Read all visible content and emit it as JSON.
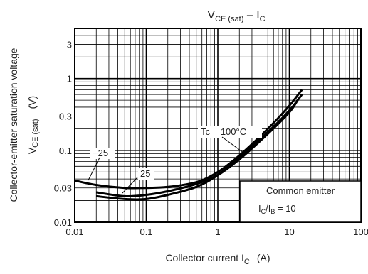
{
  "chart_data": {
    "type": "line",
    "title": "V",
    "title_sub": "CE (sat)",
    "title_suffix": " – I",
    "title_sub2": "C",
    "xlabel": "Collector current   I",
    "xlabel_sub": "C",
    "xlabel_unit": "(A)",
    "ylabel_line1": "Collector-emitter saturation voltage",
    "ylabel_main": "V",
    "ylabel_sub": "CE (sat)",
    "ylabel_unit": "(V)",
    "x_scale": "log",
    "y_scale": "log",
    "xlim": [
      0.01,
      100
    ],
    "ylim": [
      0.01,
      5
    ],
    "x_ticks": [
      {
        "v": 0.01,
        "label": "0.01"
      },
      {
        "v": 0.1,
        "label": "0.1"
      },
      {
        "v": 1,
        "label": "1"
      },
      {
        "v": 10,
        "label": "10"
      },
      {
        "v": 100,
        "label": "100"
      }
    ],
    "y_ticks": [
      {
        "v": 0.01,
        "label": "0.01"
      },
      {
        "v": 0.03,
        "label": "0.03"
      },
      {
        "v": 0.1,
        "label": "0.1"
      },
      {
        "v": 0.3,
        "label": "0.3"
      },
      {
        "v": 1,
        "label": "1"
      },
      {
        "v": 3,
        "label": "3"
      }
    ],
    "grid": true,
    "series": [
      {
        "name": "−25",
        "x": [
          0.01,
          0.02,
          0.05,
          0.1,
          0.2,
          0.5,
          1,
          2,
          5,
          10,
          15
        ],
        "y": [
          0.038,
          0.033,
          0.03,
          0.03,
          0.031,
          0.036,
          0.05,
          0.085,
          0.2,
          0.42,
          0.7
        ]
      },
      {
        "name": "25",
        "x": [
          0.02,
          0.05,
          0.1,
          0.2,
          0.5,
          1,
          2,
          5,
          10,
          15
        ],
        "y": [
          0.026,
          0.023,
          0.024,
          0.027,
          0.034,
          0.046,
          0.08,
          0.18,
          0.36,
          0.6
        ]
      },
      {
        "name": "Tc = 100°C",
        "x": [
          0.02,
          0.05,
          0.1,
          0.2,
          0.5,
          1,
          2,
          5,
          10,
          13
        ],
        "y": [
          0.023,
          0.021,
          0.021,
          0.024,
          0.031,
          0.045,
          0.075,
          0.17,
          0.34,
          0.5
        ]
      }
    ],
    "annotations": {
      "common_emitter": "Common emitter",
      "ratio_main": "I",
      "ratio_sub1": "C",
      "ratio_mid": "/I",
      "ratio_sub2": "B",
      "ratio_suffix": " = 10"
    }
  }
}
